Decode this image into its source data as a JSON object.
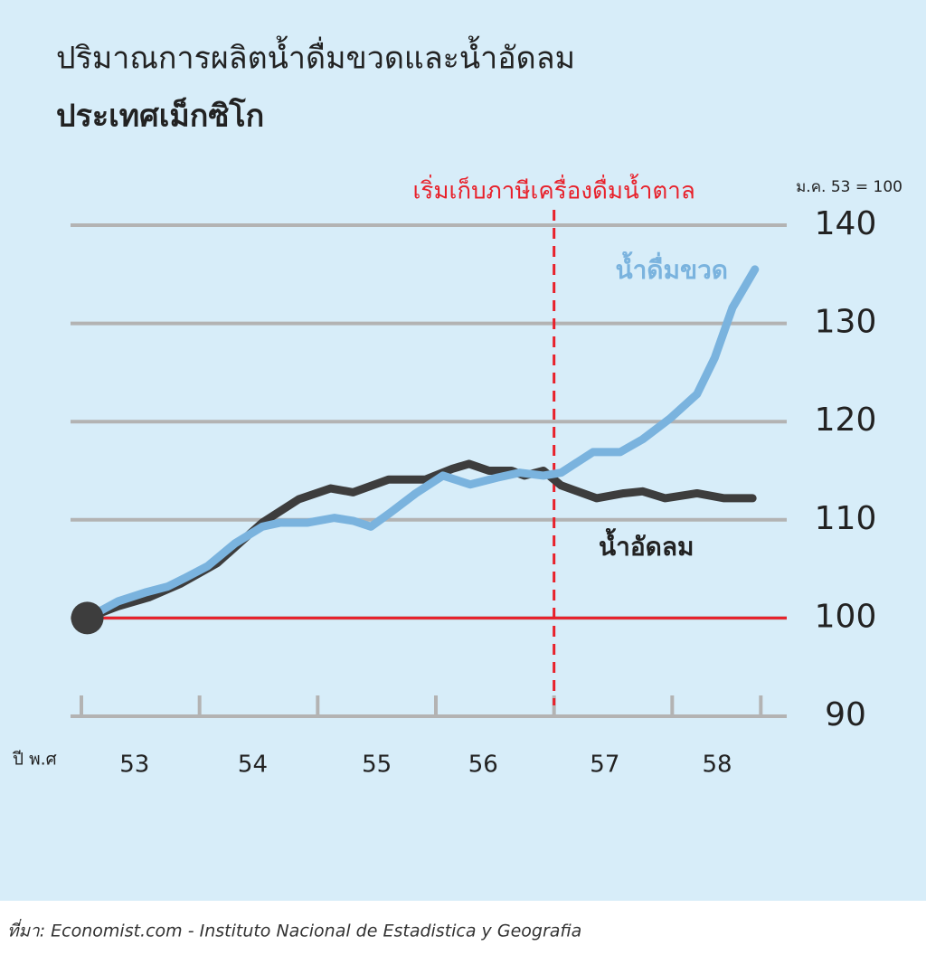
{
  "chart_data": {
    "type": "line",
    "title": "ปริมาณการผลิตน้ำดื่มขวดและน้ำอัดลม",
    "subtitle": "ประเทศเม็กซิโก",
    "index_note": "ม.ค. 53 = 100",
    "xlabel": "ปี พ.ศ",
    "annotation": {
      "x": 57,
      "text": "เริ่มเก็บภาษีเครื่องดื่มน้ำตาล",
      "color": "#e8202a"
    },
    "baseline": {
      "value": 100,
      "color": "#e8202a"
    },
    "series": [
      {
        "name": "น้ำดื่มขวด",
        "color": "#7ab3de",
        "x": [
          53.05,
          53.31,
          53.54,
          53.73,
          53.88,
          54.07,
          54.3,
          54.53,
          54.68,
          54.91,
          55.14,
          55.3,
          55.45,
          55.6,
          55.83,
          56.06,
          56.29,
          56.52,
          56.71,
          56.91,
          57.06,
          57.33,
          57.56,
          57.75,
          57.98,
          58.21,
          58.36,
          58.51,
          58.7
        ],
        "values": [
          100,
          101.7,
          102.6,
          103.2,
          104.1,
          105.3,
          107.6,
          109.3,
          109.7,
          109.7,
          110.2,
          109.9,
          109.3,
          110.6,
          112.7,
          114.5,
          113.6,
          114.3,
          114.8,
          114.5,
          114.8,
          116.9,
          116.9,
          118.2,
          120.3,
          122.8,
          126.5,
          131.6,
          135.5
        ]
      },
      {
        "name": "น้ำอัดลม",
        "color": "#3d3d3d",
        "x": [
          53.05,
          53.31,
          53.57,
          53.84,
          54.15,
          54.53,
          54.84,
          55.11,
          55.3,
          55.6,
          55.91,
          56.14,
          56.28,
          56.45,
          56.64,
          56.75,
          56.91,
          57.06,
          57.36,
          57.59,
          57.75,
          57.94,
          58.21,
          58.44,
          58.68
        ],
        "values": [
          100,
          101.2,
          102.1,
          103.5,
          105.6,
          109.7,
          112.1,
          113.2,
          112.8,
          114.1,
          114.1,
          115.2,
          115.7,
          115.0,
          115.0,
          114.5,
          115.0,
          113.5,
          112.2,
          112.7,
          112.9,
          112.2,
          112.7,
          112.2,
          112.2
        ]
      }
    ],
    "xlim": [
      53,
      59
    ],
    "xticks": [
      53,
      54,
      55,
      56,
      57,
      58,
      58.75
    ],
    "xtick_labels": [
      {
        "value": 53.45,
        "label": "53"
      },
      {
        "value": 54.45,
        "label": "54"
      },
      {
        "value": 55.5,
        "label": "55"
      },
      {
        "value": 56.4,
        "label": "56"
      },
      {
        "value": 57.43,
        "label": "57"
      },
      {
        "value": 58.38,
        "label": "58"
      }
    ],
    "ylim": [
      90,
      140
    ],
    "yticks": [
      90,
      100,
      110,
      120,
      130,
      140
    ],
    "grid": true,
    "source": "ที่มา: Economist.com - Instituto Nacional de Estadistica y Geografia"
  }
}
